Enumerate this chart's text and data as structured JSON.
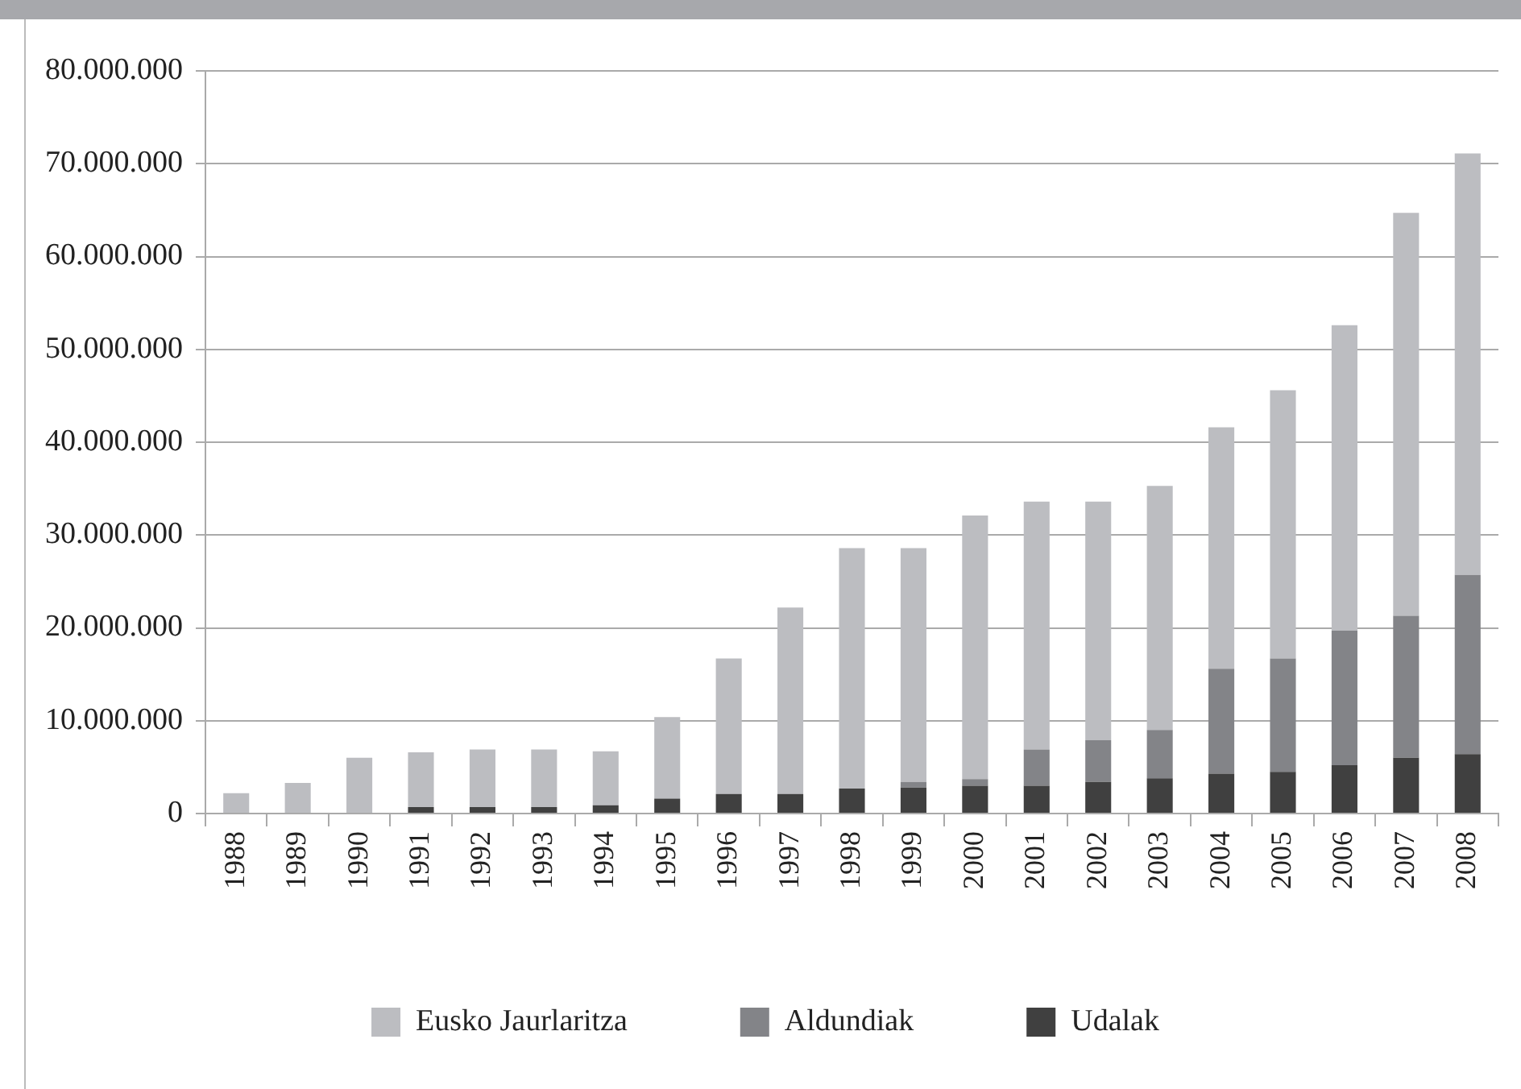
{
  "chart_data": {
    "type": "bar",
    "stacked": true,
    "categories": [
      "1988",
      "1989",
      "1990",
      "1991",
      "1992",
      "1993",
      "1994",
      "1995",
      "1996",
      "1997",
      "1998",
      "1999",
      "2000",
      "2001",
      "2002",
      "2003",
      "2004",
      "2005",
      "2006",
      "2007",
      "2008"
    ],
    "series": [
      {
        "name": "Udalak",
        "color": "#404040",
        "values": [
          0,
          0,
          0,
          700000,
          700000,
          700000,
          900000,
          1600000,
          2100000,
          2100000,
          2700000,
          2800000,
          3000000,
          3000000,
          3400000,
          3800000,
          4300000,
          4500000,
          5200000,
          6000000,
          6400000
        ]
      },
      {
        "name": "Aldundiak",
        "color": "#838488",
        "values": [
          0,
          0,
          0,
          0,
          0,
          0,
          0,
          0,
          0,
          0,
          0,
          600000,
          700000,
          3900000,
          4500000,
          5200000,
          11300000,
          12200000,
          14500000,
          15300000,
          19300000
        ]
      },
      {
        "name": "Eusko Jaurlaritza",
        "color": "#bcbdc1",
        "values": [
          2200000,
          3300000,
          6000000,
          5900000,
          6200000,
          6200000,
          5800000,
          8800000,
          14600000,
          20100000,
          25900000,
          25200000,
          28400000,
          26700000,
          25700000,
          26300000,
          26000000,
          28900000,
          32900000,
          43400000,
          45400000
        ]
      }
    ],
    "ylim": [
      0,
      80000000
    ],
    "yticks": [
      0,
      {
        "value": 10000000,
        "label": "10.000.000"
      },
      {
        "value": 20000000,
        "label": "20.000.000"
      },
      {
        "value": 30000000,
        "label": "30.000.000"
      },
      {
        "value": 40000000,
        "label": "40.000.000"
      },
      {
        "value": 50000000,
        "label": "50.000.000"
      },
      {
        "value": 60000000,
        "label": "60.000.000"
      },
      {
        "value": 70000000,
        "label": "70.000.000"
      },
      {
        "value": 80000000,
        "label": "80.000.000"
      }
    ],
    "grid": "y",
    "legend": "bottom"
  }
}
